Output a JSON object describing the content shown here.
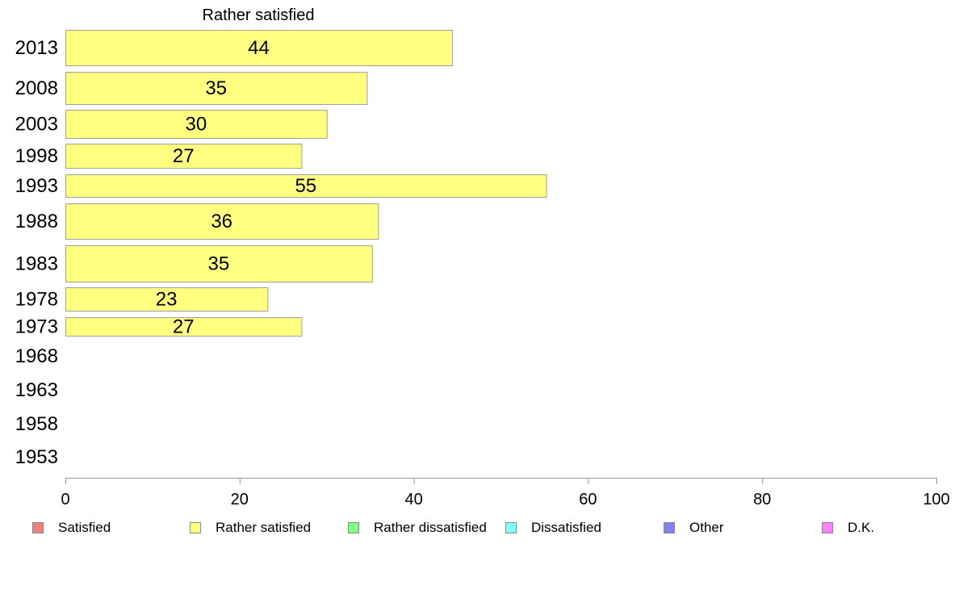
{
  "chart_data": {
    "type": "bar",
    "orientation": "horizontal",
    "title": "Rather satisfied",
    "categories": [
      "2013",
      "2008",
      "2003",
      "1998",
      "1993",
      "1988",
      "1983",
      "1978",
      "1973",
      "1968",
      "1963",
      "1958",
      "1953"
    ],
    "values": [
      44,
      35,
      30,
      27,
      55,
      36,
      35,
      23,
      27,
      null,
      null,
      null,
      null
    ],
    "bar_values_exact": [
      44.4,
      34.6,
      30.0,
      27.1,
      55.2,
      35.9,
      35.2,
      23.2,
      27.1,
      null,
      null,
      null,
      null
    ],
    "xlim": [
      0,
      100
    ],
    "xticks": [
      "0",
      "20",
      "40",
      "60",
      "80",
      "100"
    ],
    "bar_color": "#ffff80",
    "grid": false,
    "legend_position": "bottom",
    "legend": [
      {
        "label": "Satisfied",
        "color": "#f08080"
      },
      {
        "label": "Rather satisfied",
        "color": "#ffff80"
      },
      {
        "label": "Rather dissatisfied",
        "color": "#80ff80"
      },
      {
        "label": "Dissatisfied",
        "color": "#80ffff"
      },
      {
        "label": "Other",
        "color": "#8080f0"
      },
      {
        "label": "D.K.",
        "color": "#ff80ff"
      }
    ]
  }
}
